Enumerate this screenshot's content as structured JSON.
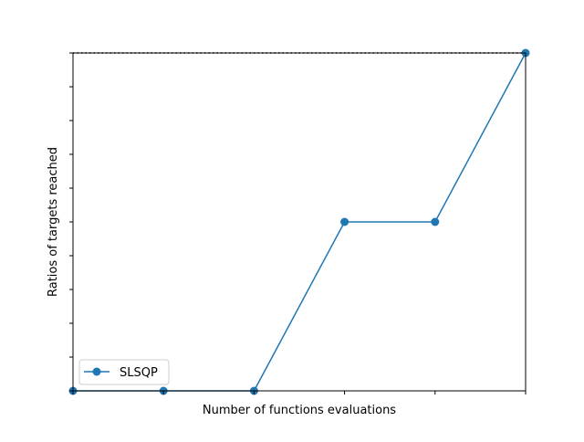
{
  "chart_data": {
    "type": "line",
    "title": "",
    "xlabel": "Number of functions evaluations",
    "ylabel": "Ratios of targets reached",
    "x": [
      0,
      1,
      2,
      3,
      4,
      5
    ],
    "xlim": [
      0,
      5
    ],
    "ylim": [
      0,
      1.0
    ],
    "x_tick_count": 6,
    "y_tick_count": 11,
    "grid": false,
    "legend_position": "lower-left",
    "reference_line": {
      "y": 1.0,
      "style": "dotted",
      "color": "#000000"
    },
    "series": [
      {
        "name": "SLSQP",
        "color": "#1f77b4",
        "marker": "circle",
        "values": [
          0,
          0,
          0,
          0.5,
          0.5,
          1.0
        ]
      }
    ]
  }
}
